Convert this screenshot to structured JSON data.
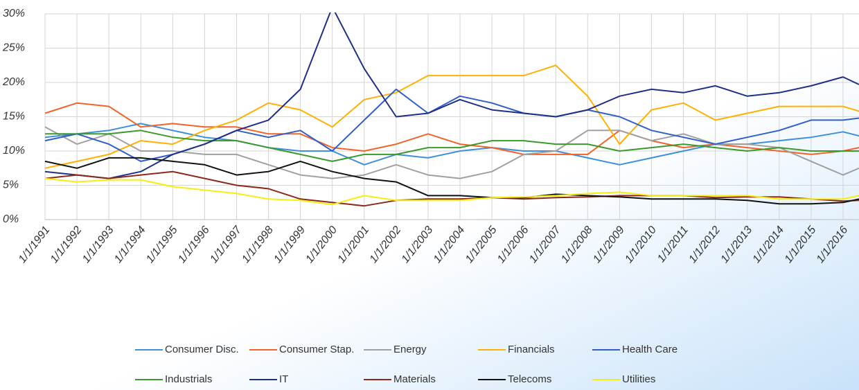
{
  "chart_data": {
    "type": "line",
    "x": [
      1991,
      1992,
      1993,
      1994,
      1995,
      1996,
      1997,
      1998,
      1999,
      2000,
      2001,
      2002,
      2003,
      2004,
      2005,
      2006,
      2007,
      2008,
      2009,
      2010,
      2011,
      2012,
      2013,
      2014,
      2015,
      2016,
      2016.5
    ],
    "xlim": [
      1991,
      2016.5
    ],
    "xticks": [
      {
        "value": 1991,
        "label": "1/1/1991"
      },
      {
        "value": 1992,
        "label": "1/1/1992"
      },
      {
        "value": 1993,
        "label": "1/1/1993"
      },
      {
        "value": 1994,
        "label": "1/1/1994"
      },
      {
        "value": 1995,
        "label": "1/1/1995"
      },
      {
        "value": 1996,
        "label": "1/1/1996"
      },
      {
        "value": 1997,
        "label": "1/1/1997"
      },
      {
        "value": 1998,
        "label": "1/1/1998"
      },
      {
        "value": 1999,
        "label": "1/1/1999"
      },
      {
        "value": 2000,
        "label": "1/1/2000"
      },
      {
        "value": 2001,
        "label": "1/1/2001"
      },
      {
        "value": 2002,
        "label": "1/1/2002"
      },
      {
        "value": 2003,
        "label": "1/1/2003"
      },
      {
        "value": 2004,
        "label": "1/1/2004"
      },
      {
        "value": 2005,
        "label": "1/1/2005"
      },
      {
        "value": 2006,
        "label": "1/1/2006"
      },
      {
        "value": 2007,
        "label": "1/1/2007"
      },
      {
        "value": 2008,
        "label": "1/1/2008"
      },
      {
        "value": 2009,
        "label": "1/1/2009"
      },
      {
        "value": 2010,
        "label": "1/1/2010"
      },
      {
        "value": 2011,
        "label": "1/1/2011"
      },
      {
        "value": 2012,
        "label": "1/1/2012"
      },
      {
        "value": 2013,
        "label": "1/1/2013"
      },
      {
        "value": 2014,
        "label": "1/1/2014"
      },
      {
        "value": 2015,
        "label": "1/1/2015"
      },
      {
        "value": 2016,
        "label": "1/1/2016"
      }
    ],
    "ylim": [
      0,
      30
    ],
    "yticks": [
      {
        "value": 0,
        "label": "0%"
      },
      {
        "value": 5,
        "label": "5%"
      },
      {
        "value": 10,
        "label": "10%"
      },
      {
        "value": 15,
        "label": "15%"
      },
      {
        "value": 20,
        "label": "20%"
      },
      {
        "value": 25,
        "label": "25%"
      },
      {
        "value": 30,
        "label": "30%"
      }
    ],
    "grid": true,
    "legend": "bottom",
    "series": [
      {
        "name": "Consumer Disc.",
        "color": "#3d8fd9",
        "values": [
          12,
          12.5,
          13,
          14,
          13,
          12,
          11.5,
          10.5,
          10,
          10,
          8,
          9.5,
          9,
          10,
          10.5,
          10,
          10,
          9,
          8,
          9,
          10,
          11,
          11,
          11.5,
          12,
          12.8,
          12.2
        ]
      },
      {
        "name": "Consumer Stap.",
        "color": "#f0642a",
        "values": [
          15.5,
          17,
          16.5,
          13.5,
          14,
          13.5,
          13.5,
          12.5,
          12.5,
          10.5,
          10,
          11,
          12.5,
          11,
          10.5,
          9.5,
          9.5,
          9.5,
          13,
          11.5,
          10.5,
          11,
          10.5,
          10,
          9.5,
          10,
          10.5
        ]
      },
      {
        "name": "Energy",
        "color": "#a0a0a0",
        "values": [
          13.5,
          11,
          12.5,
          10,
          10,
          9.5,
          9.5,
          8,
          6.5,
          6,
          6.5,
          8,
          6.5,
          6,
          7,
          9.5,
          10,
          13,
          13,
          11.5,
          12.5,
          11,
          11,
          10.5,
          8.5,
          6.5,
          7.5
        ]
      },
      {
        "name": "Financials",
        "color": "#ffb000",
        "values": [
          7.5,
          8.5,
          9.5,
          11.5,
          11,
          13,
          14.5,
          17,
          16,
          13.5,
          17.5,
          18.5,
          21,
          21,
          21,
          21,
          22.5,
          18,
          11,
          16,
          17,
          14.5,
          15.5,
          16.5,
          16.5,
          16.5,
          15.8
        ]
      },
      {
        "name": "Health Care",
        "color": "#2e5fc8",
        "values": [
          11.5,
          12.5,
          11,
          8.5,
          9.5,
          11,
          13,
          12,
          13,
          10,
          14.5,
          19,
          15.5,
          18,
          17,
          15.5,
          15,
          16,
          15,
          13,
          12,
          11,
          12,
          13,
          14.5,
          14.5,
          14.8
        ]
      },
      {
        "name": "Industrials",
        "color": "#3a9a2a",
        "values": [
          12.5,
          12.5,
          12.5,
          13,
          12,
          11.5,
          11.5,
          10.5,
          9.5,
          8.5,
          9.5,
          9.5,
          10.5,
          10.5,
          11.5,
          11.5,
          11,
          11,
          10,
          10.5,
          11,
          10.5,
          10,
          10.5,
          10,
          10,
          10
        ]
      },
      {
        "name": "IT",
        "color": "#1f2f88",
        "values": [
          7,
          6.5,
          6,
          7,
          9.5,
          11,
          13,
          14.5,
          19,
          31,
          22,
          15,
          15.5,
          17.5,
          16,
          15.5,
          15,
          16,
          18,
          19,
          18.5,
          19.5,
          18,
          18.5,
          19.5,
          20.8,
          19.7
        ]
      },
      {
        "name": "Materials",
        "color": "#8b2a1a",
        "values": [
          6,
          6.5,
          6,
          6.5,
          7,
          6,
          5,
          4.5,
          3,
          2.5,
          2,
          2.8,
          3,
          3,
          3.2,
          3,
          3.2,
          3.3,
          3.5,
          3.5,
          3.5,
          3.2,
          3.3,
          3.3,
          3,
          2.7,
          2.8
        ]
      },
      {
        "name": "Telecoms",
        "color": "#111111",
        "values": [
          8.5,
          7.5,
          9,
          9,
          8.5,
          8,
          6.5,
          7,
          8.5,
          7,
          6,
          5.5,
          3.5,
          3.5,
          3.2,
          3.2,
          3.7,
          3.5,
          3.3,
          3,
          3,
          3,
          2.8,
          2.3,
          2.3,
          2.5,
          3
        ]
      },
      {
        "name": "Utilities",
        "color": "#f5ef10",
        "values": [
          6,
          5.5,
          5.8,
          5.8,
          4.8,
          4.3,
          3.8,
          3,
          2.8,
          2.2,
          3.5,
          2.8,
          2.8,
          2.8,
          3.2,
          3.3,
          3.5,
          3.8,
          4,
          3.5,
          3.5,
          3.5,
          3.5,
          3,
          3,
          3,
          3.5
        ]
      }
    ]
  }
}
